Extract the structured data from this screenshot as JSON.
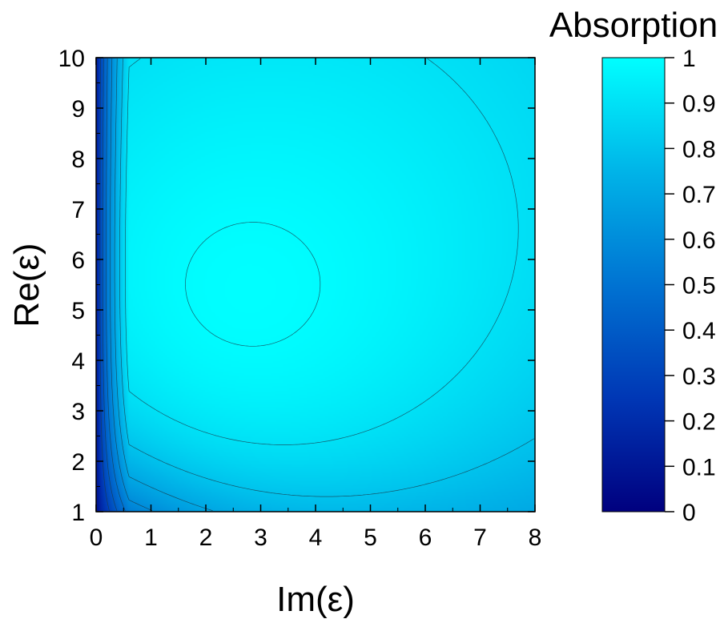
{
  "chart_data": {
    "type": "heatmap",
    "title": "",
    "xlabel": "Im(ε)",
    "ylabel": "Re(ε)",
    "xlim": [
      0,
      8
    ],
    "ylim": [
      1,
      10
    ],
    "x_ticks": [
      "0",
      "1",
      "2",
      "3",
      "4",
      "5",
      "6",
      "7",
      "8"
    ],
    "y_ticks": [
      "1",
      "2",
      "3",
      "4",
      "5",
      "6",
      "7",
      "8",
      "9",
      "10"
    ],
    "colorbar": {
      "title": "Absorption",
      "range": [
        0,
        1
      ],
      "ticks": [
        "0",
        "0.1",
        "0.2",
        "0.3",
        "0.4",
        "0.5",
        "0.6",
        "0.7",
        "0.8",
        "0.9",
        "1"
      ],
      "color_low": "#000080",
      "color_high": "#00ffff"
    },
    "peak": {
      "re": 5.4,
      "im": 2.8,
      "value": 1.0
    },
    "contour_levels": [
      0.3,
      0.4,
      0.5,
      0.6,
      0.7,
      0.8,
      0.9,
      0.99
    ],
    "grid": false
  }
}
